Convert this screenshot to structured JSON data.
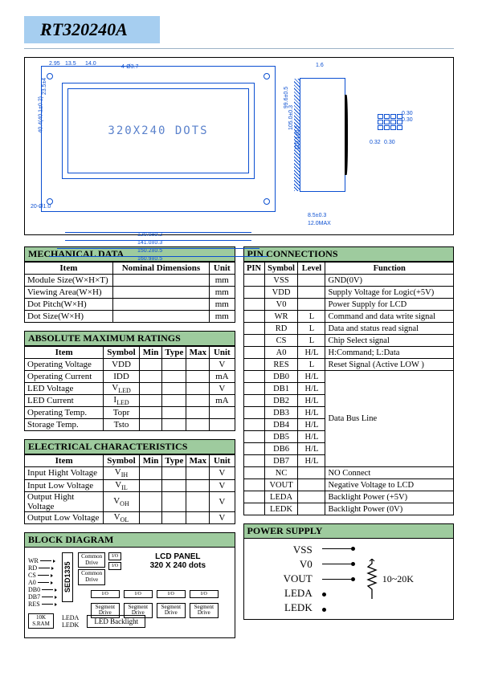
{
  "header": {
    "title": "RT320240A"
  },
  "drawing": {
    "center_text": "320X240 DOTS",
    "dims": {
      "top_a": "2.95",
      "top_b": "13.5",
      "top_c": "14.0",
      "top_d": "4-Ø3.7",
      "bottom_1": "120.0±0.2",
      "bottom_2": "141.0±0.3",
      "bottom_3": "150.2±0.5",
      "bottom_4": "160.9±0.5",
      "left_1": "23.5±4",
      "left_2": "2.5",
      "left_3": "40.4(40.1±0.2)",
      "right_1": "99.6±0.5",
      "right_2": "105.0±0.3",
      "right_3": "110.1±0.5",
      "side_b": "8.5±0.3",
      "side_h": "12.0MAX",
      "side_t": "1.6",
      "pin_a": "0.30",
      "pin_b": "0.30",
      "pin_c": "0.32",
      "pin_d": "0.30",
      "bl": "20-Ø1.0"
    }
  },
  "mechanical": {
    "title": "MECHANICAL  DATA",
    "hdr_item": "Item",
    "hdr_dim": "Nominal  Dimensions",
    "hdr_unit": "Unit",
    "rows": [
      {
        "item": "Module Size(W×H×T)",
        "unit": "mm"
      },
      {
        "item": "Viewing  Area(W×H)",
        "unit": "mm"
      },
      {
        "item": "Dot  Pitch(W×H)",
        "unit": "mm"
      },
      {
        "item": "Dot  Size(W×H)",
        "unit": "mm"
      }
    ]
  },
  "absmax": {
    "title": "ABSOLUTE  MAXIMUM  RATINGS",
    "hdr_item": "Item",
    "hdr_sym": "Symbol",
    "hdr_min": "Min",
    "hdr_typ": "Type",
    "hdr_max": "Max",
    "hdr_unit": "Unit",
    "rows": [
      {
        "item": "Operating  Voltage",
        "sym": "VDD",
        "unit": "V"
      },
      {
        "item": "Operating  Current",
        "sym": "IDD",
        "unit": "mA"
      },
      {
        "item": "LED  Voltage",
        "sym": "V",
        "sub": "LED",
        "unit": "V"
      },
      {
        "item": "LED  Current",
        "sym": "I",
        "sub": "LED",
        "unit": "mA"
      },
      {
        "item": "Operating  Temp.",
        "sym": "Topr",
        "unit": ""
      },
      {
        "item": "Storage  Temp.",
        "sym": "Tsto",
        "unit": ""
      }
    ]
  },
  "elec": {
    "title": "ELECTRICAL  CHARACTERISTICS",
    "hdr_item": "Item",
    "hdr_sym": "Symbol",
    "hdr_min": "Min",
    "hdr_typ": "Type",
    "hdr_max": "Max",
    "hdr_unit": "Unit",
    "rows": [
      {
        "item": "Input Hight Voltage",
        "sym": "V",
        "sub": "IH",
        "unit": "V"
      },
      {
        "item": "Input  Low  Voltage",
        "sym": "V",
        "sub": "IL",
        "unit": "V"
      },
      {
        "item": "Output Hight Voltage",
        "sym": "V",
        "sub": "OH",
        "unit": "V"
      },
      {
        "item": "Output Low Voltage",
        "sym": "V",
        "sub": "OL",
        "unit": "V"
      }
    ]
  },
  "pins": {
    "title": "PIN  CONNECTIONS",
    "hdr_pin": "PIN",
    "hdr_sym": "Symbol",
    "hdr_lvl": "Level",
    "hdr_fn": "Function",
    "rows": [
      {
        "sym": "VSS",
        "lvl": "",
        "fn": "GND(0V)"
      },
      {
        "sym": "VDD",
        "lvl": "",
        "fn": "Supply Voltage for Logic(+5V)"
      },
      {
        "sym": "V0",
        "lvl": "",
        "fn": "Power Supply for LCD"
      },
      {
        "sym": "WR",
        "lvl": "L",
        "fn": "Command and data write signal"
      },
      {
        "sym": "RD",
        "lvl": "L",
        "fn": "Data and status read signal"
      },
      {
        "sym": "CS",
        "lvl": "L",
        "fn": "Chip Select signal"
      },
      {
        "sym": "A0",
        "lvl": "H/L",
        "fn": "H:Command;  L:Data"
      },
      {
        "sym": "RES",
        "lvl": "L",
        "fn": "Reset Signal (Active LOW )"
      },
      {
        "sym": "DB0",
        "lvl": "H/L",
        "fn": ""
      },
      {
        "sym": "DB1",
        "lvl": "H/L",
        "fn": ""
      },
      {
        "sym": "DB2",
        "lvl": "H/L",
        "fn": ""
      },
      {
        "sym": "DB3",
        "lvl": "H/L",
        "fn": ""
      },
      {
        "sym": "DB4",
        "lvl": "H/L",
        "fn": ""
      },
      {
        "sym": "DB5",
        "lvl": "H/L",
        "fn": ""
      },
      {
        "sym": "DB6",
        "lvl": "H/L",
        "fn": ""
      },
      {
        "sym": "DB7",
        "lvl": "H/L",
        "fn": ""
      },
      {
        "sym": "NC",
        "lvl": "",
        "fn": "NO Connect"
      },
      {
        "sym": "VOUT",
        "lvl": "",
        "fn": "Negative Voltage to LCD"
      },
      {
        "sym": "LEDA",
        "lvl": "",
        "fn": "Backlight Power (+5V)"
      },
      {
        "sym": "LEDK",
        "lvl": "",
        "fn": "Backlight Power (0V)"
      }
    ],
    "dbus_label": "Data Bus Line"
  },
  "block": {
    "title": "BLOCK  DIAGRAM",
    "sigs": [
      "WR",
      "RD",
      "CS",
      "A0",
      "DB0",
      "DB7",
      "RES"
    ],
    "chip": "SED1335",
    "sram": "10K S.RAM",
    "common": "Common Drive",
    "seg": "Segment Drive",
    "io": "I/O",
    "panel1": "LCD  PANEL",
    "panel2": "320 X 240 dots",
    "leda": "LEDA",
    "ledk": "LEDK",
    "backlight": "LED Backlight"
  },
  "power": {
    "title": "POWER  SUPPLY",
    "labels": [
      "VSS",
      "V0",
      "VOUT",
      "LEDA",
      "LEDK"
    ],
    "rval": "10~20K"
  },
  "colors": {
    "header_bg": "#a6cef0",
    "section_bg": "#9ecb9e",
    "drawing": "#0b4fd1",
    "rule": "#9cb3c7"
  }
}
